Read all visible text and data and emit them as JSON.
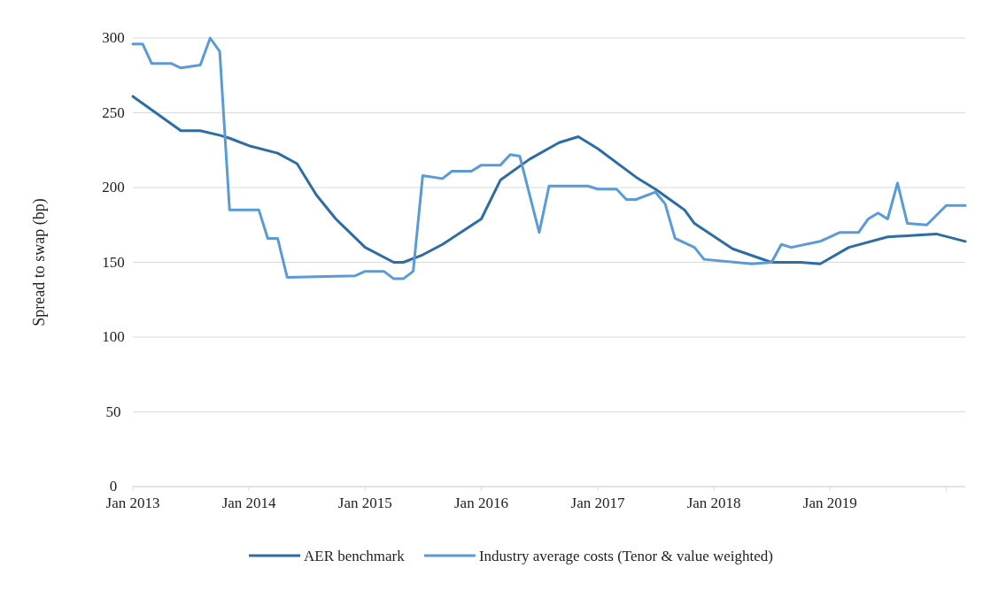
{
  "chart_data": {
    "type": "line",
    "ylabel": "Spread to swap (bp)",
    "xlim": [
      "2013-01",
      "2020-03"
    ],
    "xticks": [
      {
        "value": "2013-01",
        "label": "Jan 2013"
      },
      {
        "value": "2014-01",
        "label": "Jan 2014"
      },
      {
        "value": "2015-01",
        "label": "Jan 2015"
      },
      {
        "value": "2016-01",
        "label": "Jan 2016"
      },
      {
        "value": "2017-01",
        "label": "Jan 2017"
      },
      {
        "value": "2018-01",
        "label": "Jan 2018"
      },
      {
        "value": "2019-01",
        "label": "Jan 2019"
      },
      {
        "value": "2020-01",
        "label": null
      }
    ],
    "ylim": [
      0,
      300
    ],
    "yticks": [
      0,
      50,
      100,
      150,
      200,
      250,
      300
    ],
    "grid": "y",
    "legend": "bottom",
    "series": [
      {
        "name": "AER benchmark",
        "color": "#2e6da4",
        "x": [
          "2013-01",
          "2013-06",
          "2013-08",
          "2013-10",
          "2013-11",
          "2014-01",
          "2014-04",
          "2014-06",
          "2014-08",
          "2014-10",
          "2015-01",
          "2015-04",
          "2015-05",
          "2015-07",
          "2015-09",
          "2016-01",
          "2016-03",
          "2016-06",
          "2016-09",
          "2016-11",
          "2017-01",
          "2017-05",
          "2017-07",
          "2017-10",
          "2017-11",
          "2018-03",
          "2018-07",
          "2018-10",
          "2018-12",
          "2019-03",
          "2019-07",
          "2019-12",
          "2020-03"
        ],
        "values": [
          261,
          238,
          238,
          235,
          233,
          228,
          223,
          216,
          195,
          179,
          160,
          150,
          150,
          155,
          162,
          179,
          205,
          219,
          230,
          234,
          226,
          207,
          199,
          185,
          176,
          159,
          150,
          150,
          149,
          160,
          167,
          169,
          164
        ]
      },
      {
        "name": "Industry average costs (Tenor & value weighted)",
        "color": "#5b9bd5",
        "x": [
          "2013-01",
          "2013-02",
          "2013-03",
          "2013-05",
          "2013-06",
          "2013-08",
          "2013-09",
          "2013-10",
          "2013-11",
          "2014-02",
          "2014-03",
          "2014-04",
          "2014-05",
          "2014-12",
          "2015-01",
          "2015-03",
          "2015-04",
          "2015-05",
          "2015-06",
          "2015-07",
          "2015-09",
          "2015-10",
          "2015-12",
          "2016-01",
          "2016-03",
          "2016-04",
          "2016-05",
          "2016-07",
          "2016-08",
          "2016-12",
          "2017-01",
          "2017-03",
          "2017-04",
          "2017-05",
          "2017-07",
          "2017-08",
          "2017-09",
          "2017-11",
          "2017-12",
          "2018-05",
          "2018-07",
          "2018-08",
          "2018-09",
          "2018-12",
          "2019-02",
          "2019-04",
          "2019-05",
          "2019-06",
          "2019-07",
          "2019-08",
          "2019-09",
          "2019-11",
          "2020-01",
          "2020-03"
        ],
        "values": [
          296,
          296,
          283,
          283,
          280,
          282,
          300,
          291,
          185,
          185,
          166,
          166,
          140,
          141,
          144,
          144,
          139,
          139,
          144,
          208,
          206,
          211,
          211,
          215,
          215,
          222,
          221,
          170,
          201,
          201,
          199,
          199,
          192,
          192,
          197,
          189,
          166,
          160,
          152,
          149,
          150,
          162,
          160,
          164,
          170,
          170,
          179,
          183,
          179,
          203,
          176,
          175,
          188,
          188
        ]
      }
    ]
  }
}
